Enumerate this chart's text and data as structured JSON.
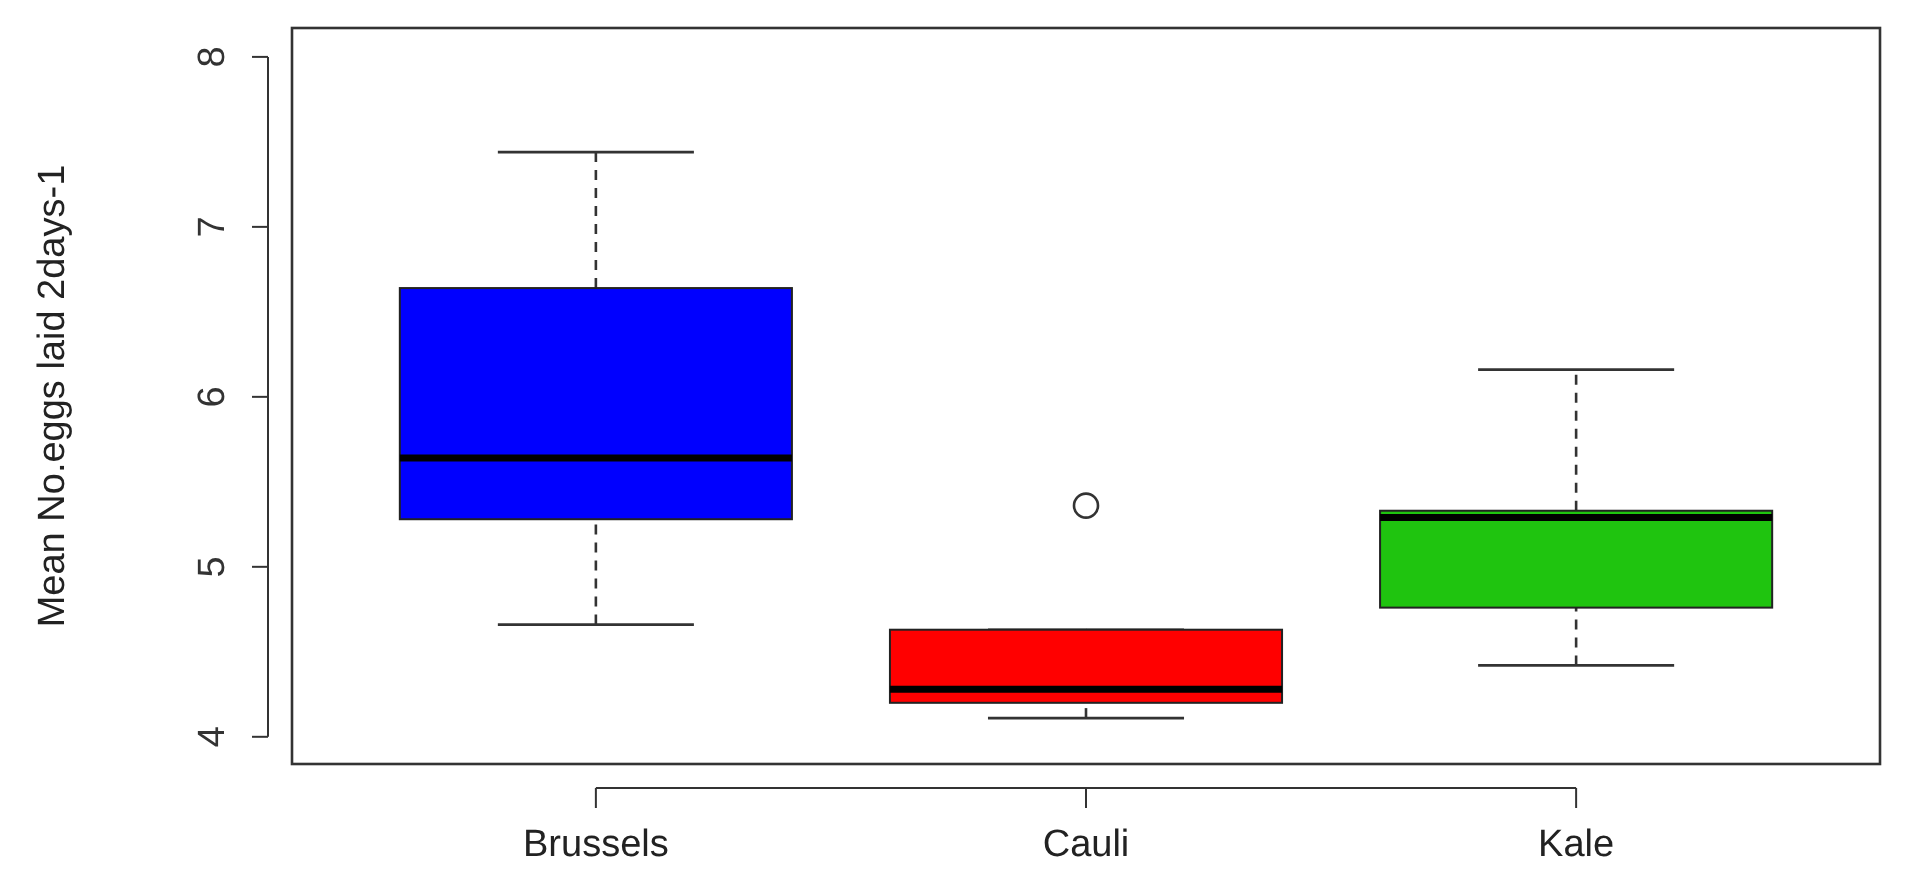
{
  "chart_data": {
    "type": "box",
    "ylabel": "Mean No.eggs laid 2days-1",
    "categories": [
      "Brussels",
      "Cauli",
      "Kale"
    ],
    "colors": [
      "#0000ff",
      "#ff0000",
      "#1fc40f"
    ],
    "boxes": [
      {
        "low": 4.66,
        "q1": 5.28,
        "median": 5.64,
        "q3": 6.64,
        "high": 7.44
      },
      {
        "low": 4.11,
        "q1": 4.2,
        "median": 4.28,
        "q3": 4.63,
        "high": 4.63,
        "outliers": [
          5.36
        ]
      },
      {
        "low": 4.42,
        "q1": 4.76,
        "median": 5.29,
        "q3": 5.33,
        "high": 6.16
      }
    ],
    "ylim": [
      3.84,
      8.17
    ],
    "yticks": [
      4,
      5,
      6,
      7,
      8
    ]
  }
}
